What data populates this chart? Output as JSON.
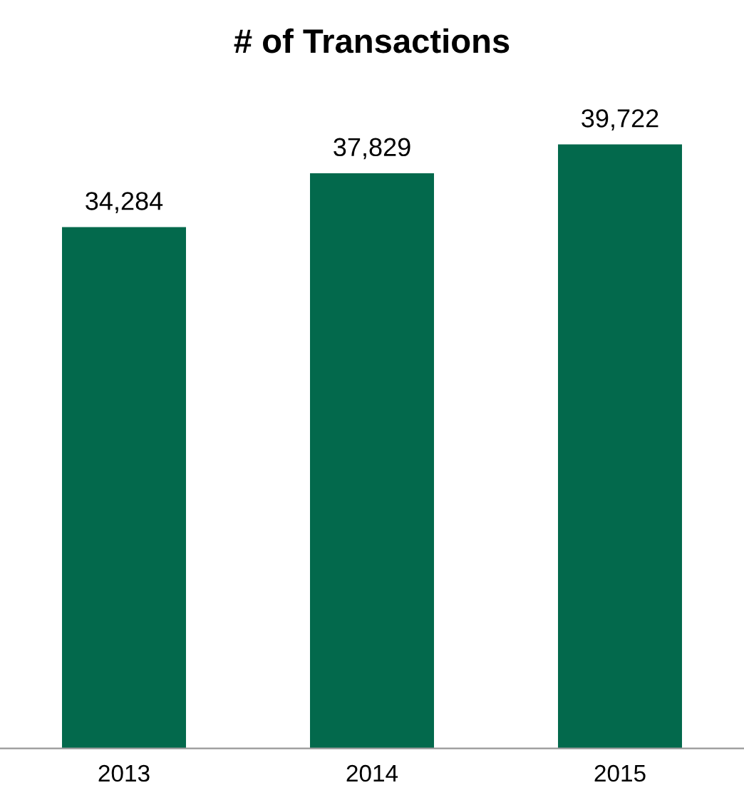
{
  "chart_data": {
    "type": "bar",
    "title": "# of Transactions",
    "categories": [
      "2013",
      "2014",
      "2015"
    ],
    "values": [
      34284,
      37829,
      39722
    ],
    "value_labels": [
      "34,284",
      "37,829",
      "39,722"
    ],
    "color": "#03694c",
    "tick_labels": "x",
    "grid": false,
    "legend": false
  }
}
